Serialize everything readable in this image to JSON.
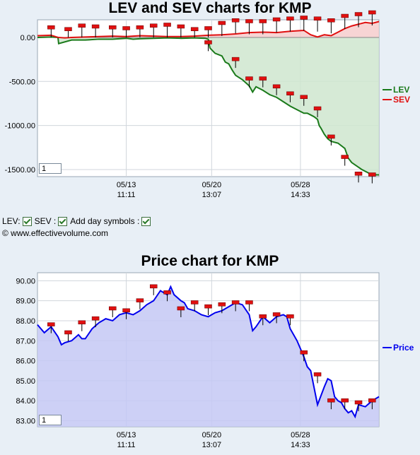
{
  "copyright": "© www.effectivevolume.com",
  "controls": {
    "lev_label": "LEV:",
    "sev_label": "SEV :",
    "day_label": "Add day symbols :",
    "lev_checked": true,
    "sev_checked": true,
    "day_checked": true
  },
  "colors": {
    "lev": "#1a7a1a",
    "sev": "#e01010",
    "price": "#0000ee",
    "lev_fill": "#cfe6cf",
    "sev_fill": "#f6cccc",
    "price_fill": "#c4c8f4",
    "marker": "#e01010"
  },
  "chart_data": [
    {
      "type": "area",
      "title": "LEV and SEV charts for KMP",
      "zoom_value": "1",
      "yticks": [
        0,
        -500,
        -1000,
        -1500
      ],
      "ytick_labels": [
        "0.00",
        "-500.00",
        "-1000.00",
        "-1500.00"
      ],
      "ylim": [
        -1580,
        200
      ],
      "xlim": [
        0,
        100
      ],
      "xticks": [
        {
          "x": 26,
          "date": "05/13",
          "time": "11:11"
        },
        {
          "x": 51,
          "date": "05/20",
          "time": "13:07"
        },
        {
          "x": 77,
          "date": "05/28",
          "time": "14:33"
        }
      ],
      "series": [
        {
          "name": "LEV",
          "x": [
            0,
            4,
            6,
            6.2,
            10,
            14,
            18,
            22,
            26,
            28,
            30,
            34,
            38,
            42,
            46,
            49,
            50,
            50.5,
            52,
            54,
            55,
            56,
            57,
            58,
            60,
            62,
            63,
            64,
            66,
            68,
            70,
            72,
            74,
            76,
            78,
            79,
            80,
            81,
            82,
            82.5,
            83,
            84,
            85,
            86,
            88,
            90,
            91,
            92,
            95,
            98,
            100
          ],
          "y": [
            0,
            5,
            0,
            -70,
            -30,
            -30,
            -20,
            -20,
            -10,
            -20,
            -15,
            -10,
            -5,
            -10,
            -5,
            -10,
            -20,
            -120,
            -180,
            -210,
            -280,
            -300,
            -370,
            -430,
            -480,
            -550,
            -620,
            -560,
            -600,
            -650,
            -680,
            -730,
            -780,
            -820,
            -860,
            -860,
            -880,
            -900,
            -930,
            -1000,
            -1030,
            -1100,
            -1150,
            -1180,
            -1200,
            -1260,
            -1370,
            -1420,
            -1500,
            -1560,
            -1560
          ]
        },
        {
          "name": "SEV",
          "x": [
            0,
            4,
            6,
            8,
            10,
            14,
            18,
            22,
            26,
            30,
            34,
            38,
            42,
            46,
            50,
            54,
            58,
            62,
            66,
            70,
            74,
            78,
            80,
            82,
            84,
            86,
            88,
            90,
            92,
            94,
            96,
            98,
            100
          ],
          "y": [
            20,
            25,
            0,
            -5,
            0,
            5,
            10,
            15,
            10,
            20,
            15,
            10,
            10,
            15,
            25,
            30,
            40,
            55,
            60,
            55,
            70,
            80,
            30,
            5,
            30,
            20,
            60,
            100,
            130,
            150,
            170,
            160,
            180
          ]
        }
      ],
      "markers_x": [
        4,
        9,
        13,
        17,
        22,
        26,
        30,
        34,
        38,
        42,
        46,
        50,
        54,
        58,
        62,
        66,
        70,
        74,
        78,
        82,
        86,
        90,
        94,
        98
      ],
      "marker_lev_y": [
        0,
        -20,
        -20,
        -20,
        -10,
        -10,
        -10,
        -5,
        -5,
        -5,
        -10,
        -60,
        -30,
        -250,
        -470,
        -470,
        -560,
        -640,
        -680,
        -810,
        -1130,
        -1360,
        -1550,
        -1560
      ],
      "marker_sev_y": [
        110,
        90,
        130,
        120,
        110,
        100,
        110,
        130,
        140,
        120,
        90,
        100,
        160,
        190,
        180,
        180,
        200,
        210,
        220,
        210,
        190,
        240,
        260,
        280
      ]
    },
    {
      "type": "area",
      "title": "Price chart for KMP",
      "zoom_value": "1",
      "yticks": [
        83,
        84,
        85,
        86,
        87,
        88,
        89,
        90
      ],
      "ytick_labels": [
        "83.00",
        "84.00",
        "85.00",
        "86.00",
        "87.00",
        "88.00",
        "89.00",
        "90.00"
      ],
      "ylim": [
        82.7,
        90.4
      ],
      "xlim": [
        0,
        100
      ],
      "xticks": [
        {
          "x": 26,
          "date": "05/13",
          "time": "11:11"
        },
        {
          "x": 51,
          "date": "05/20",
          "time": "13:07"
        },
        {
          "x": 77,
          "date": "05/28",
          "time": "14:33"
        }
      ],
      "series": [
        {
          "name": "Price",
          "x": [
            0,
            2,
            4,
            6,
            7,
            8,
            10,
            12,
            13,
            14,
            16,
            18,
            20,
            22,
            24,
            26,
            28,
            30,
            32,
            34,
            36,
            38,
            39,
            40,
            42,
            43,
            44,
            46,
            48,
            50,
            52,
            54,
            56,
            58,
            60,
            62,
            63,
            64,
            66,
            68,
            70,
            72,
            73,
            74,
            76,
            78,
            79,
            80,
            82,
            84,
            85,
            86,
            87,
            88,
            89,
            90,
            91,
            92,
            93,
            94,
            96,
            98,
            100
          ],
          "y": [
            87.8,
            87.4,
            87.7,
            87.2,
            86.8,
            86.9,
            87.0,
            87.3,
            87.1,
            87.1,
            87.6,
            87.9,
            88.1,
            88.0,
            88.3,
            88.4,
            88.3,
            88.5,
            88.8,
            89.0,
            89.5,
            89.3,
            89.7,
            89.3,
            89.0,
            88.9,
            88.6,
            88.5,
            88.3,
            88.2,
            88.4,
            88.5,
            88.7,
            88.9,
            88.8,
            88.3,
            87.5,
            87.7,
            88.2,
            87.9,
            88.2,
            88.3,
            88.2,
            87.6,
            87.0,
            86.2,
            85.7,
            85.5,
            83.8,
            84.7,
            85.1,
            85.0,
            84.2,
            84.0,
            83.9,
            83.6,
            83.4,
            83.5,
            83.2,
            83.8,
            83.7,
            84.0,
            84.2
          ]
        }
      ],
      "markers_x": [
        4,
        9,
        13,
        17,
        22,
        26,
        30,
        34,
        38,
        42,
        46,
        50,
        54,
        58,
        62,
        66,
        70,
        74,
        78,
        82,
        86,
        90,
        94,
        98
      ],
      "marker_y": [
        87.8,
        87.4,
        87.9,
        88.1,
        88.6,
        88.5,
        89.0,
        89.7,
        89.4,
        88.6,
        88.9,
        88.7,
        88.8,
        88.9,
        88.9,
        88.2,
        88.3,
        88.2,
        86.4,
        85.3,
        84.0,
        84.0,
        83.9,
        84.0
      ]
    }
  ]
}
